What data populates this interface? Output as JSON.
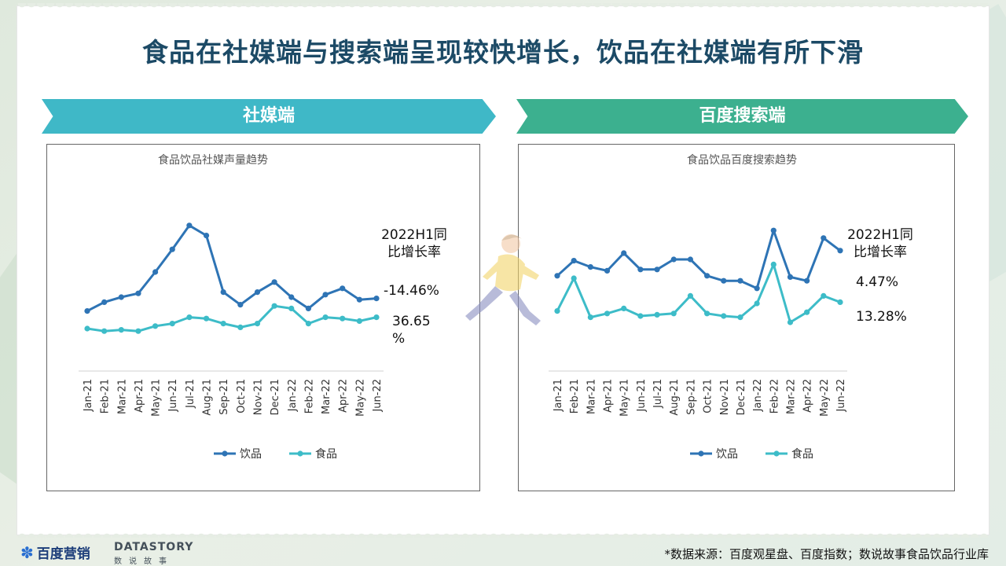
{
  "title": "食品在社媒端与搜索端呈现较快增长，饮品在社媒端有所下滑",
  "banners": {
    "left": "社媒端",
    "right": "百度搜索端"
  },
  "footer": {
    "baidu_logo": "百度营销",
    "datastory_logo": "DATASTORY",
    "datastory_sub": "数说故事",
    "source": "*数据来源：百度观星盘、百度指数；数说故事食品饮品行业库"
  },
  "colors": {
    "drink": "#2e74b5",
    "food": "#3dbcc8",
    "left_banner": "#3fb8c7",
    "right_banner": "#3cb08f"
  },
  "chart_data": [
    {
      "type": "line",
      "title": "食品饮品社媒声量趋势",
      "categories": [
        "Jan-21",
        "Feb-21",
        "Mar-21",
        "Apr-21",
        "May-21",
        "Jun-21",
        "Jul-21",
        "Aug-21",
        "Sep-21",
        "Oct-21",
        "Nov-21",
        "Dec-21",
        "Jan-22",
        "Feb-22",
        "Mar-22",
        "Apr-22",
        "May-22",
        "Jun-22"
      ],
      "series": [
        {
          "name": "饮品",
          "color": "#2e74b5",
          "values": [
            29,
            36,
            40,
            43,
            60,
            78,
            97,
            89,
            44,
            34,
            44,
            52,
            40,
            31,
            42,
            47,
            38,
            39
          ]
        },
        {
          "name": "食品",
          "color": "#3dbcc8",
          "values": [
            15,
            13,
            14,
            13,
            17,
            19,
            24,
            23,
            19,
            16,
            19,
            33,
            31,
            19,
            24,
            23,
            21,
            24
          ]
        }
      ],
      "annotation_title": "2022H1同\n比增长率",
      "growth_labels": [
        "-14.46%",
        "36.65\n%"
      ],
      "ylim": [
        0,
        110
      ],
      "legend_position": "bottom"
    },
    {
      "type": "line",
      "title": "食品饮品百度搜索趋势",
      "categories": [
        "Jan-21",
        "Feb-21",
        "Mar-21",
        "Apr-21",
        "May-21",
        "Jun-21",
        "Jul-21",
        "Aug-21",
        "Sep-21",
        "Oct-21",
        "Nov-21",
        "Dec-21",
        "Jan-22",
        "Feb-22",
        "Mar-22",
        "Apr-22",
        "May-22",
        "Jun-22"
      ],
      "series": [
        {
          "name": "饮品",
          "color": "#2e74b5",
          "values": [
            57,
            69,
            64,
            61,
            75,
            62,
            62,
            70,
            70,
            57,
            53,
            53,
            47,
            93,
            56,
            53,
            87,
            77
          ]
        },
        {
          "name": "食品",
          "color": "#3dbcc8",
          "values": [
            29,
            55,
            24,
            27,
            31,
            25,
            26,
            27,
            41,
            27,
            25,
            24,
            35,
            66,
            20,
            28,
            41,
            36
          ]
        }
      ],
      "annotation_title": "2022H1同\n比增长率",
      "growth_labels": [
        "4.47%",
        "13.28%"
      ],
      "ylim": [
        0,
        110
      ],
      "legend_position": "bottom"
    }
  ]
}
